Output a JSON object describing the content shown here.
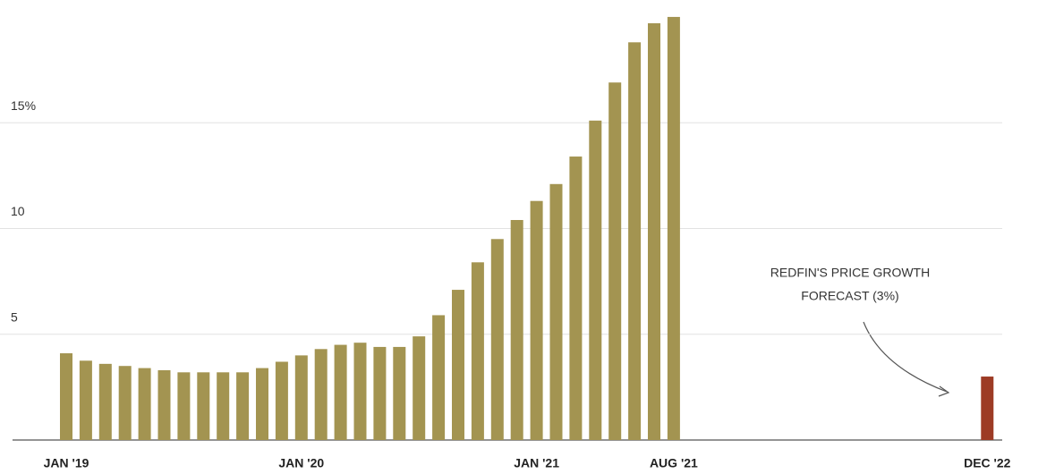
{
  "chart_data": {
    "type": "bar",
    "categories": [
      "JAN '19",
      null,
      null,
      null,
      null,
      null,
      null,
      null,
      null,
      null,
      null,
      null,
      "JAN '20",
      null,
      null,
      null,
      null,
      null,
      null,
      null,
      null,
      null,
      null,
      null,
      "JAN '21",
      null,
      null,
      null,
      null,
      null,
      null,
      "AUG '21",
      null,
      null,
      null,
      null,
      null,
      null,
      null,
      null,
      null,
      null,
      null,
      null,
      null,
      null,
      null,
      "DEC '22"
    ],
    "values": [
      4.1,
      3.75,
      3.6,
      3.5,
      3.4,
      3.3,
      3.2,
      3.2,
      3.2,
      3.2,
      3.4,
      3.7,
      4.0,
      4.3,
      4.5,
      4.6,
      4.4,
      4.4,
      4.9,
      5.9,
      7.1,
      8.4,
      9.5,
      10.4,
      11.3,
      12.1,
      13.4,
      15.1,
      16.9,
      18.8,
      19.7,
      20.0,
      null,
      null,
      null,
      null,
      null,
      null,
      null,
      null,
      null,
      null,
      null,
      null,
      null,
      null,
      null,
      3.0
    ],
    "colors": [
      "#a39451",
      "#a39451",
      "#a39451",
      "#a39451",
      "#a39451",
      "#a39451",
      "#a39451",
      "#a39451",
      "#a39451",
      "#a39451",
      "#a39451",
      "#a39451",
      "#a39451",
      "#a39451",
      "#a39451",
      "#a39451",
      "#a39451",
      "#a39451",
      "#a39451",
      "#a39451",
      "#a39451",
      "#a39451",
      "#a39451",
      "#a39451",
      "#a39451",
      "#a39451",
      "#a39451",
      "#a39451",
      "#a39451",
      "#a39451",
      "#a39451",
      "#a39451",
      null,
      null,
      null,
      null,
      null,
      null,
      null,
      null,
      null,
      null,
      null,
      null,
      null,
      null,
      null,
      "#9d3b25"
    ],
    "ylim": [
      0,
      20.8
    ],
    "yticks": [
      5,
      10,
      {
        "value": 15,
        "label": "15%"
      }
    ],
    "grid": true,
    "annotation": [
      "REDFIN'S PRICE GROWTH",
      "FORECAST (3%)"
    ]
  }
}
